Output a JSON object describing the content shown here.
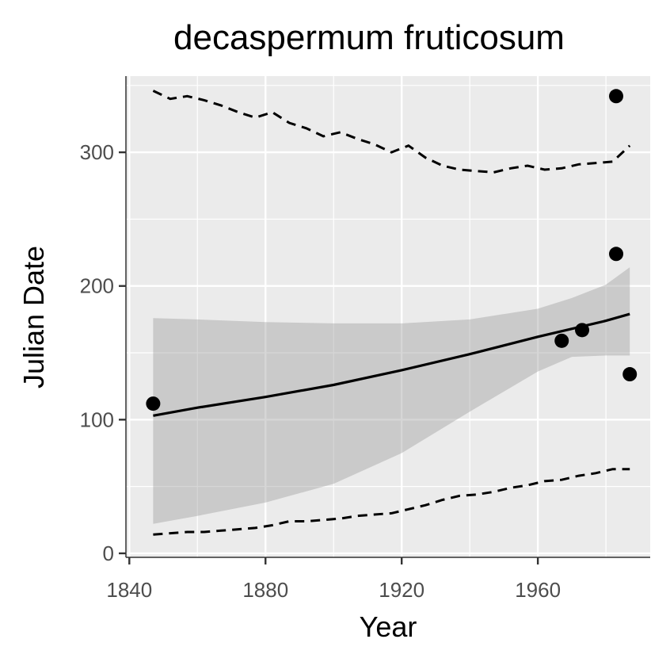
{
  "chart_data": {
    "type": "scatter",
    "title": "decaspermum fruticosum",
    "xlabel": "Year",
    "ylabel": "Julian Date",
    "xlim": [
      1839,
      1993
    ],
    "ylim": [
      -3,
      357
    ],
    "x_ticks": [
      1840,
      1880,
      1920,
      1960
    ],
    "y_ticks": [
      0,
      100,
      200,
      300
    ],
    "grid": true,
    "legend": "none",
    "points": [
      {
        "x": 1847,
        "y": 112
      },
      {
        "x": 1967,
        "y": 159
      },
      {
        "x": 1973,
        "y": 167
      },
      {
        "x": 1983,
        "y": 342
      },
      {
        "x": 1983,
        "y": 224
      },
      {
        "x": 1987,
        "y": 134
      }
    ],
    "trend": {
      "x": [
        1847,
        1860,
        1880,
        1900,
        1920,
        1940,
        1960,
        1980,
        1987
      ],
      "y": [
        103,
        109,
        117,
        126,
        137,
        149,
        162,
        174,
        179
      ]
    },
    "ci_band": {
      "x": [
        1847,
        1860,
        1880,
        1900,
        1920,
        1940,
        1960,
        1970,
        1980,
        1987
      ],
      "lower": [
        22,
        28,
        38,
        52,
        75,
        106,
        136,
        147,
        148,
        148
      ],
      "upper": [
        176,
        175,
        173,
        172,
        172,
        175,
        183,
        191,
        201,
        214
      ]
    },
    "upper_dashed": {
      "x": [
        1847,
        1852,
        1857,
        1862,
        1867,
        1872,
        1877,
        1882,
        1887,
        1892,
        1897,
        1902,
        1907,
        1912,
        1917,
        1922,
        1927,
        1932,
        1937,
        1942,
        1947,
        1952,
        1957,
        1962,
        1967,
        1972,
        1977,
        1982,
        1987
      ],
      "y": [
        346,
        340,
        342,
        339,
        335,
        330,
        326,
        330,
        322,
        318,
        312,
        315,
        310,
        306,
        300,
        305,
        296,
        290,
        287,
        286,
        285,
        288,
        290,
        287,
        288,
        291,
        292,
        293,
        305
      ]
    },
    "lower_dashed": {
      "x": [
        1847,
        1852,
        1857,
        1862,
        1867,
        1872,
        1877,
        1882,
        1887,
        1892,
        1897,
        1902,
        1907,
        1912,
        1917,
        1922,
        1927,
        1932,
        1937,
        1942,
        1947,
        1952,
        1957,
        1962,
        1967,
        1972,
        1977,
        1982,
        1987
      ],
      "y": [
        14,
        15,
        16,
        16,
        17,
        18,
        19,
        21,
        24,
        24,
        25,
        26,
        28,
        29,
        30,
        33,
        36,
        40,
        43,
        44,
        46,
        49,
        51,
        54,
        55,
        58,
        60,
        63,
        63
      ]
    }
  }
}
